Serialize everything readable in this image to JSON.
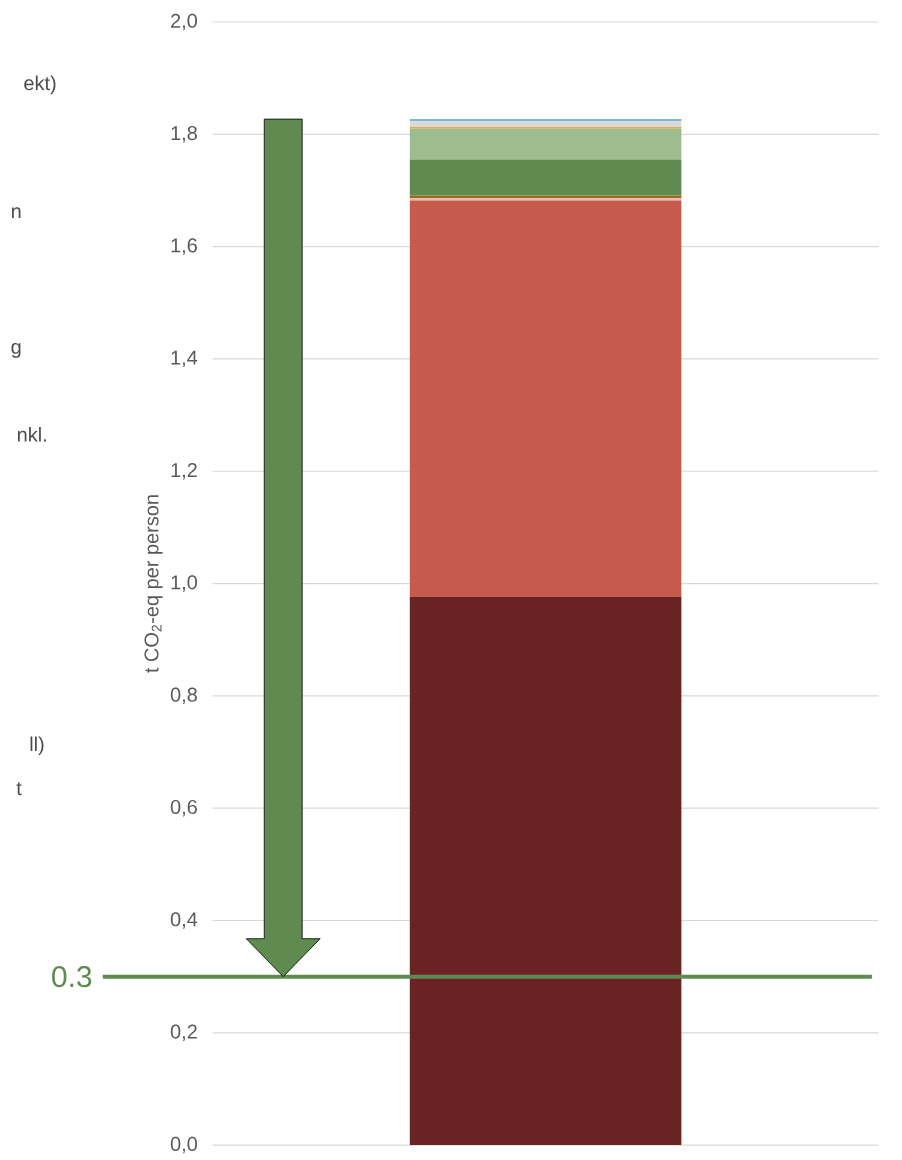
{
  "chart_data": {
    "type": "bar",
    "stacked": true,
    "ylabel": "t CO$_{2}$-eq per person",
    "categories": [
      null
    ],
    "series": [
      {
        "color": "#692322",
        "values": [
          0.976
        ]
      },
      {
        "color": "#c65a4d",
        "values": [
          0.706
        ]
      },
      {
        "color": "#e8b7b0",
        "values": [
          0.004
        ]
      },
      {
        "color": "#9c6a1a",
        "values": [
          0.005
        ]
      },
      {
        "color": "#5f8a50",
        "values": [
          0.064
        ]
      },
      {
        "color": "#9ebc8e",
        "values": [
          0.055
        ]
      },
      {
        "color": "#e0b050",
        "values": [
          0.003
        ]
      },
      {
        "color": "#d9d9d9",
        "values": [
          0.01
        ]
      },
      {
        "color": "#7ab8cc",
        "values": [
          0.004
        ]
      }
    ],
    "ylim": [
      0,
      2
    ],
    "yticks": [
      {
        "value": 0,
        "label": "0,0"
      },
      {
        "value": 0.2,
        "label": "0,2"
      },
      {
        "value": 0.4,
        "label": "0,4"
      },
      {
        "value": 0.6,
        "label": "0,6"
      },
      {
        "value": 0.8,
        "label": "0,8"
      },
      {
        "value": 1.0,
        "label": "1,0"
      },
      {
        "value": 1.2,
        "label": "1,2"
      },
      {
        "value": 1.4,
        "label": "1,4"
      },
      {
        "value": 1.6,
        "label": "1,6"
      },
      {
        "value": 1.8,
        "label": "1,8"
      },
      {
        "value": 2.0,
        "label": "2,0"
      }
    ],
    "grid": "y",
    "ref_lines": [
      {
        "axis": "y",
        "value": 0.3,
        "label": "0.3",
        "color": "#5f8a50"
      }
    ],
    "annotations": [
      "ekt)",
      "n",
      "g",
      "nkl.",
      "ll)",
      "t"
    ]
  }
}
